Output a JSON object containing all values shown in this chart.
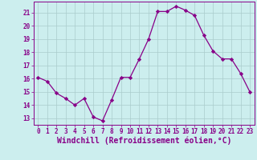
{
  "x": [
    0,
    1,
    2,
    3,
    4,
    5,
    6,
    7,
    8,
    9,
    10,
    11,
    12,
    13,
    14,
    15,
    16,
    17,
    18,
    19,
    20,
    21,
    22,
    23
  ],
  "y": [
    16.1,
    15.8,
    14.9,
    14.5,
    14.0,
    14.5,
    13.1,
    12.8,
    14.4,
    16.1,
    16.1,
    17.5,
    19.0,
    21.1,
    21.1,
    21.5,
    21.2,
    20.8,
    19.3,
    18.1,
    17.5,
    17.5,
    16.4,
    15.0
  ],
  "line_color": "#880088",
  "marker": "D",
  "marker_size": 2.2,
  "bg_color": "#cceeee",
  "grid_color": "#aacccc",
  "xlabel": "Windchill (Refroidissement éolien,°C)",
  "xlim": [
    -0.5,
    23.5
  ],
  "ylim": [
    12.5,
    21.85
  ],
  "yticks": [
    13,
    14,
    15,
    16,
    17,
    18,
    19,
    20,
    21
  ],
  "xticks": [
    0,
    1,
    2,
    3,
    4,
    5,
    6,
    7,
    8,
    9,
    10,
    11,
    12,
    13,
    14,
    15,
    16,
    17,
    18,
    19,
    20,
    21,
    22,
    23
  ],
  "tick_color": "#880088",
  "tick_fontsize": 5.5,
  "xlabel_fontsize": 7.0,
  "spine_color": "#880088",
  "linewidth": 0.9
}
